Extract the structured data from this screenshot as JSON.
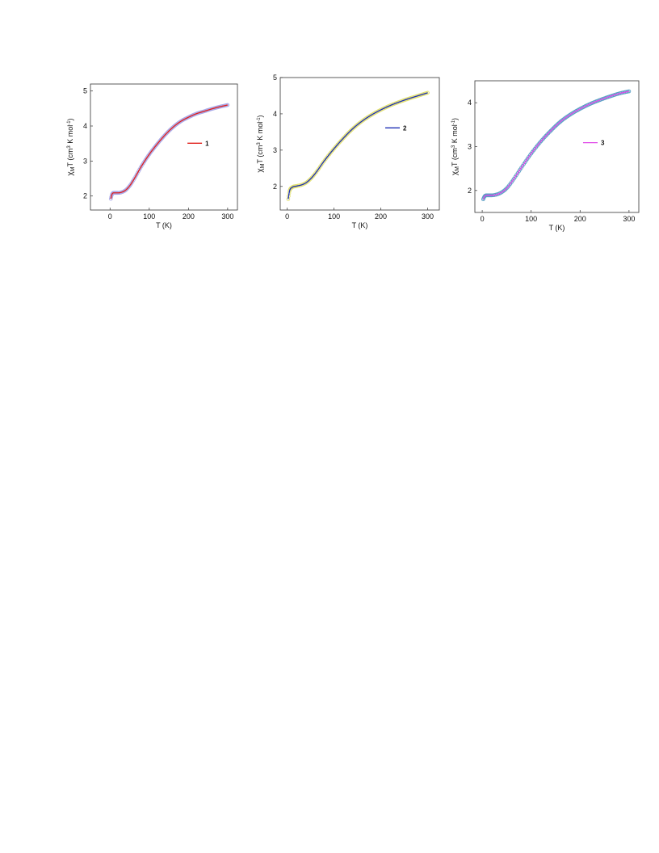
{
  "chart_data": [
    {
      "id": "chart-1",
      "type": "scatter",
      "xlabel": "T (K)",
      "ylabel_parts": {
        "chi": "χ",
        "sub": "M",
        "main": "T (cm",
        "sup3": "3",
        "mid": " K mol",
        "supneg": "-1",
        "end": ")"
      },
      "xlim": [
        -50,
        325
      ],
      "ylim": [
        1.6,
        5.2
      ],
      "xticks": [
        0,
        100,
        200,
        300
      ],
      "yticks": [
        2,
        3,
        4,
        5
      ],
      "legend_position": "center-right",
      "series": [
        {
          "name": "1",
          "fit_color": "#e0201c",
          "point_color": "#a9a9e8",
          "x": [
            2,
            5,
            10,
            20,
            30,
            40,
            50,
            60,
            80,
            100,
            120,
            140,
            160,
            180,
            200,
            220,
            240,
            260,
            280,
            300
          ],
          "y": [
            1.92,
            2.05,
            2.09,
            2.09,
            2.11,
            2.17,
            2.29,
            2.46,
            2.85,
            3.19,
            3.48,
            3.74,
            3.96,
            4.13,
            4.25,
            4.35,
            4.42,
            4.49,
            4.55,
            4.6
          ]
        }
      ]
    },
    {
      "id": "chart-2",
      "type": "scatter",
      "xlabel": "T (K)",
      "ylabel_parts": {
        "chi": "χ",
        "sub": "M",
        "main": "T (cm",
        "sup3": "3",
        "mid": " K mol",
        "supneg": "-1",
        "end": ")"
      },
      "xlim": [
        -15,
        325
      ],
      "ylim": [
        1.35,
        5.0
      ],
      "xticks": [
        0,
        100,
        200,
        300
      ],
      "yticks": [
        2,
        3,
        4,
        5
      ],
      "legend_position": "top-right",
      "series": [
        {
          "name": "2",
          "fit_color": "#1d2fb5",
          "point_color": "#e2e070",
          "x": [
            2,
            5,
            10,
            20,
            30,
            40,
            50,
            60,
            80,
            100,
            120,
            140,
            160,
            180,
            200,
            220,
            240,
            260,
            280,
            300
          ],
          "y": [
            1.65,
            1.88,
            1.97,
            2.01,
            2.04,
            2.1,
            2.21,
            2.36,
            2.72,
            3.04,
            3.33,
            3.59,
            3.8,
            3.97,
            4.11,
            4.23,
            4.33,
            4.42,
            4.5,
            4.58
          ]
        }
      ]
    },
    {
      "id": "chart-3",
      "type": "scatter",
      "xlabel": "T (K)",
      "ylabel_parts": {
        "chi": "χ",
        "sub": "M",
        "main": "T (cm",
        "sup3": "3",
        "mid": " K mol",
        "supneg": "-1",
        "end": ")"
      },
      "xlim": [
        -15,
        320
      ],
      "ylim": [
        1.5,
        4.5
      ],
      "xticks": [
        0,
        100,
        200,
        300
      ],
      "yticks": [
        2,
        3,
        4
      ],
      "legend_position": "center-right",
      "series": [
        {
          "name": "3",
          "fit_color": "#e049e8",
          "point_color": "#5a9fc4",
          "x": [
            2,
            5,
            10,
            20,
            30,
            40,
            50,
            60,
            80,
            100,
            120,
            140,
            160,
            180,
            200,
            220,
            240,
            260,
            280,
            300
          ],
          "y": [
            1.8,
            1.87,
            1.89,
            1.89,
            1.91,
            1.96,
            2.05,
            2.19,
            2.52,
            2.84,
            3.12,
            3.36,
            3.57,
            3.73,
            3.86,
            3.97,
            4.06,
            4.14,
            4.21,
            4.26
          ]
        }
      ]
    }
  ]
}
